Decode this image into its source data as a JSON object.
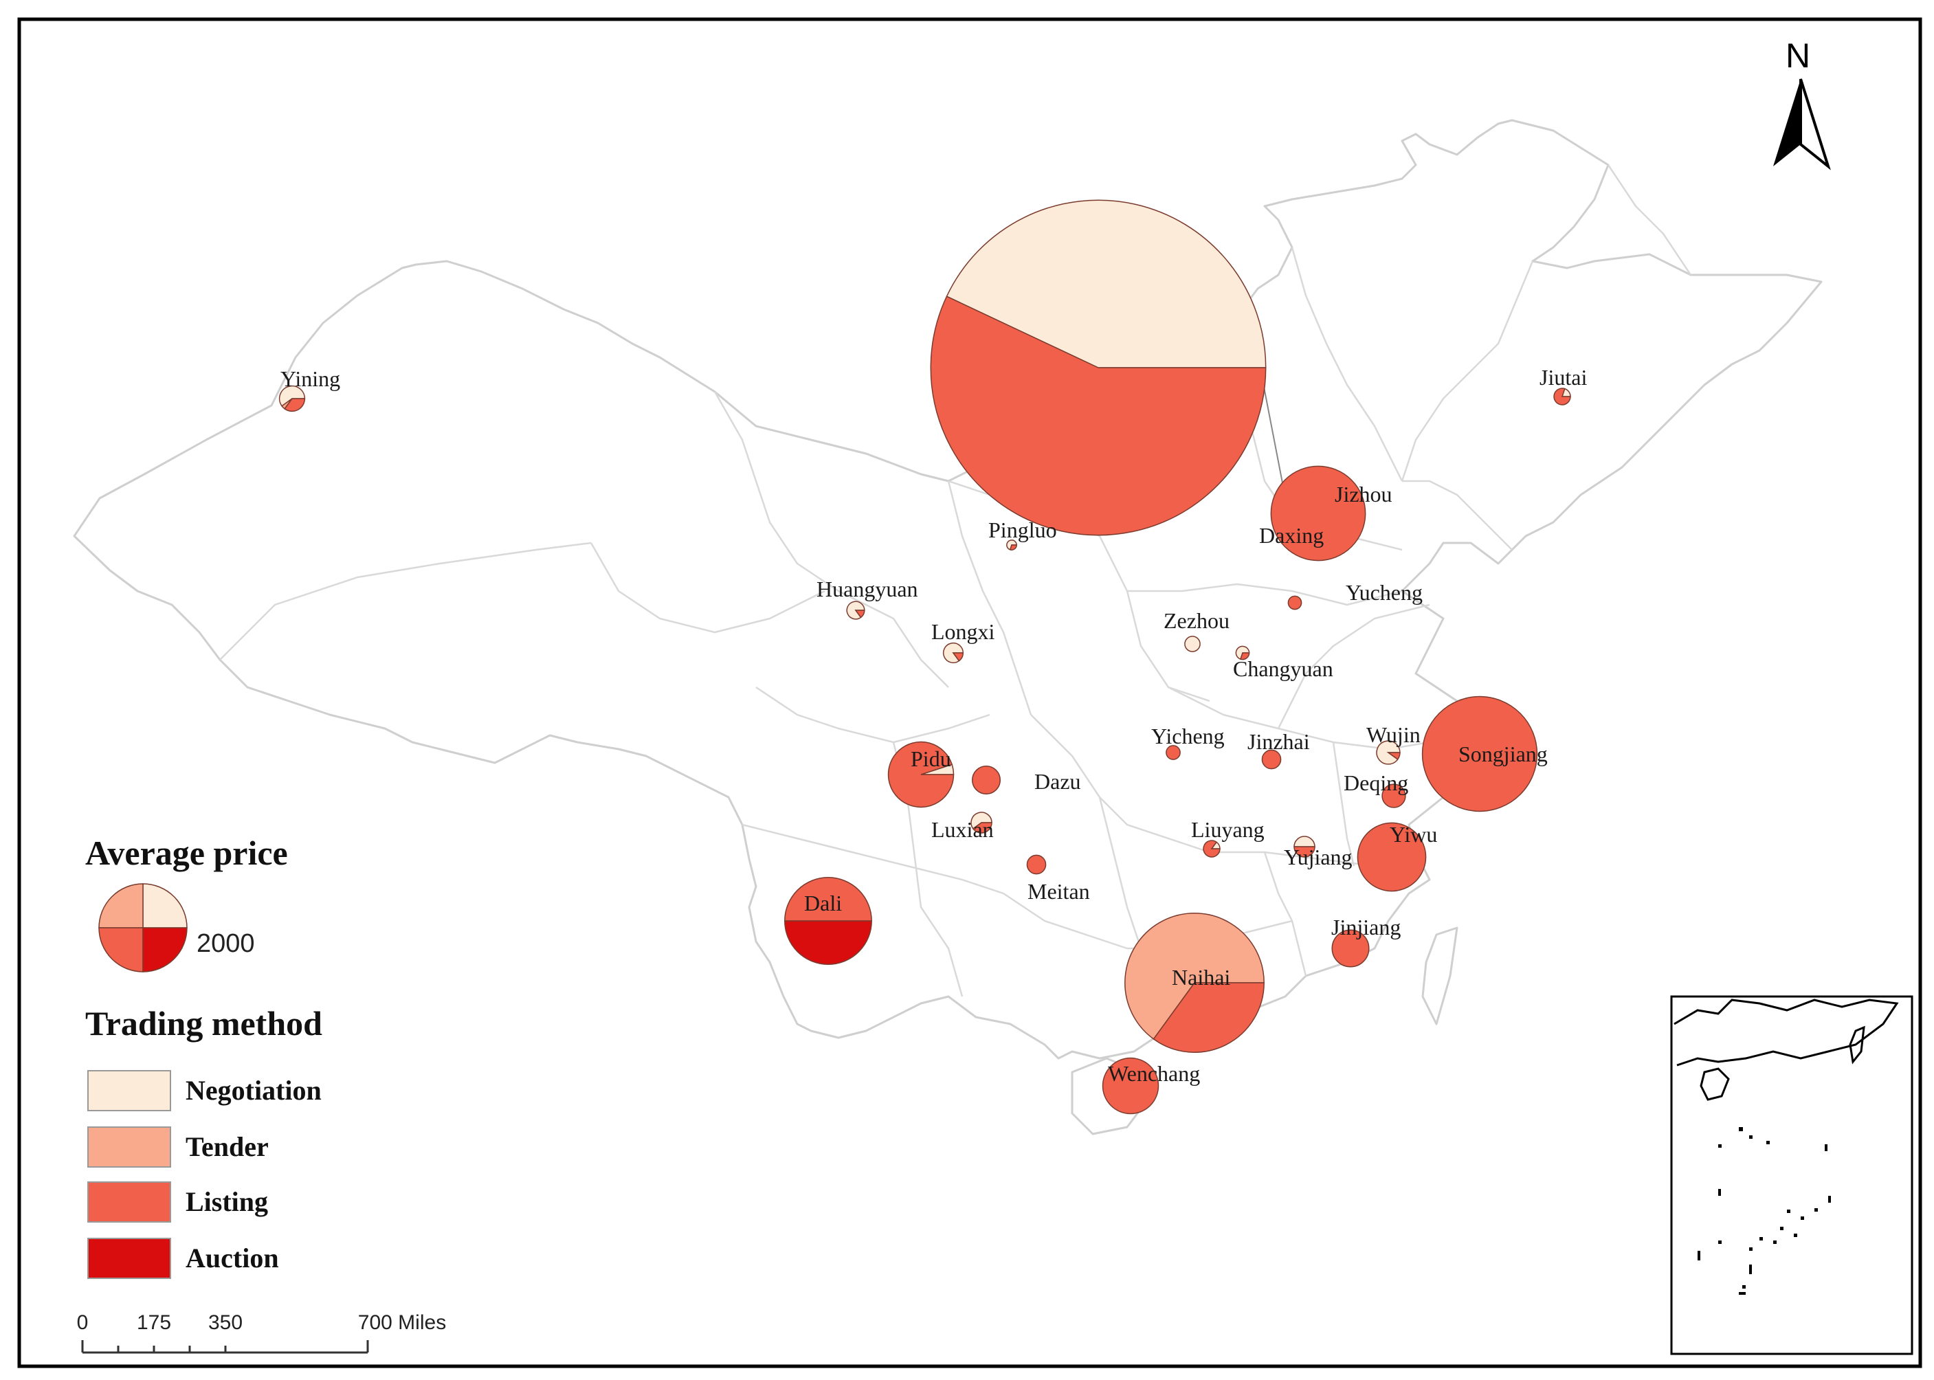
{
  "colors": {
    "negotiation": "#fdebd9",
    "tender": "#f9a98c",
    "listing": "#f0604a",
    "auction": "#d90d0d",
    "outline": "#d6d6d6",
    "stroke": "#7a3b2e"
  },
  "legend": {
    "avg_price_title": "Average price",
    "reference_value": "2000",
    "reference_value_num": 2000,
    "trading_title": "Trading method",
    "methods": [
      {
        "key": "negotiation",
        "label": "Negotiation"
      },
      {
        "key": "tender",
        "label": "Tender"
      },
      {
        "key": "listing",
        "label": "Listing"
      },
      {
        "key": "auction",
        "label": "Auction"
      }
    ]
  },
  "north": {
    "label": "N"
  },
  "scale_bar": {
    "ticks": [
      "0",
      "175",
      "350",
      "700 Miles"
    ]
  },
  "cities": [
    {
      "name": "Yining",
      "avg_price": 165,
      "shares": {
        "negotiation": 0.6,
        "tender": 0.05,
        "listing": 0.35,
        "auction": 0
      }
    },
    {
      "name": "Jiutai",
      "avg_price": 70,
      "shares": {
        "negotiation": 0.2,
        "tender": 0,
        "listing": 0.8,
        "auction": 0
      }
    },
    {
      "name": "Daxing",
      "avg_price": 29000,
      "shares": {
        "negotiation": 0.43,
        "tender": 0,
        "listing": 0.57,
        "auction": 0
      }
    },
    {
      "name": "Jizhou",
      "avg_price": 2300,
      "shares": {
        "negotiation": 0,
        "tender": 0,
        "listing": 1,
        "auction": 0
      }
    },
    {
      "name": "Pingluo",
      "avg_price": 25,
      "shares": {
        "negotiation": 0.7,
        "tender": 0,
        "listing": 0.3,
        "auction": 0
      }
    },
    {
      "name": "Huangyuan",
      "avg_price": 80,
      "shares": {
        "negotiation": 0.85,
        "tender": 0,
        "listing": 0.15,
        "auction": 0
      }
    },
    {
      "name": "Longxi",
      "avg_price": 100,
      "shares": {
        "negotiation": 0.85,
        "tender": 0,
        "listing": 0.15,
        "auction": 0
      }
    },
    {
      "name": "Yucheng",
      "avg_price": 45,
      "shares": {
        "negotiation": 0,
        "tender": 0,
        "listing": 1,
        "auction": 0
      }
    },
    {
      "name": "Zezhou",
      "avg_price": 60,
      "shares": {
        "negotiation": 1,
        "tender": 0,
        "listing": 0,
        "auction": 0
      }
    },
    {
      "name": "Changyuan",
      "avg_price": 45,
      "shares": {
        "negotiation": 0.7,
        "tender": 0,
        "listing": 0.3,
        "auction": 0
      }
    },
    {
      "name": "Pidu",
      "avg_price": 1100,
      "shares": {
        "negotiation": 0.05,
        "tender": 0,
        "listing": 0.95,
        "auction": 0
      }
    },
    {
      "name": "Dazu",
      "avg_price": 200,
      "shares": {
        "negotiation": 0,
        "tender": 0,
        "listing": 1,
        "auction": 0
      }
    },
    {
      "name": "Luxian",
      "avg_price": 110,
      "shares": {
        "negotiation": 0.6,
        "tender": 0,
        "listing": 0.4,
        "auction": 0
      }
    },
    {
      "name": "Meitan",
      "avg_price": 90,
      "shares": {
        "negotiation": 0,
        "tender": 0,
        "listing": 1,
        "auction": 0
      }
    },
    {
      "name": "Yicheng",
      "avg_price": 50,
      "shares": {
        "negotiation": 0,
        "tender": 0,
        "listing": 1,
        "auction": 0
      }
    },
    {
      "name": "Jinzhai",
      "avg_price": 90,
      "shares": {
        "negotiation": 0,
        "tender": 0,
        "listing": 1,
        "auction": 0
      }
    },
    {
      "name": "Wujin",
      "avg_price": 140,
      "shares": {
        "negotiation": 0.9,
        "tender": 0,
        "listing": 0.1,
        "auction": 0
      }
    },
    {
      "name": "Songjiang",
      "avg_price": 3400,
      "shares": {
        "negotiation": 0,
        "tender": 0,
        "listing": 1,
        "auction": 0
      }
    },
    {
      "name": "Deqing",
      "avg_price": 140,
      "shares": {
        "negotiation": 0,
        "tender": 0,
        "listing": 1,
        "auction": 0
      }
    },
    {
      "name": "Liuyang",
      "avg_price": 70,
      "shares": {
        "negotiation": 0.15,
        "tender": 0,
        "listing": 0.85,
        "auction": 0
      }
    },
    {
      "name": "Yujiang",
      "avg_price": 110,
      "shares": {
        "negotiation": 0.5,
        "tender": 0,
        "listing": 0.5,
        "auction": 0
      }
    },
    {
      "name": "Yiwu",
      "avg_price": 1200,
      "shares": {
        "negotiation": 0,
        "tender": 0,
        "listing": 1,
        "auction": 0
      }
    },
    {
      "name": "Dali",
      "avg_price": 1950,
      "shares": {
        "negotiation": 0,
        "tender": 0,
        "listing": 0.5,
        "auction": 0.5
      }
    },
    {
      "name": "Naihai",
      "avg_price": 5000,
      "shares": {
        "negotiation": 0,
        "tender": 0.65,
        "listing": 0.35,
        "auction": 0
      }
    },
    {
      "name": "Jinjiang",
      "avg_price": 350,
      "shares": {
        "negotiation": 0,
        "tender": 0,
        "listing": 1,
        "auction": 0
      }
    },
    {
      "name": "Wenchang",
      "avg_price": 800,
      "shares": {
        "negotiation": 0,
        "tender": 0,
        "listing": 1,
        "auction": 0
      }
    }
  ]
}
